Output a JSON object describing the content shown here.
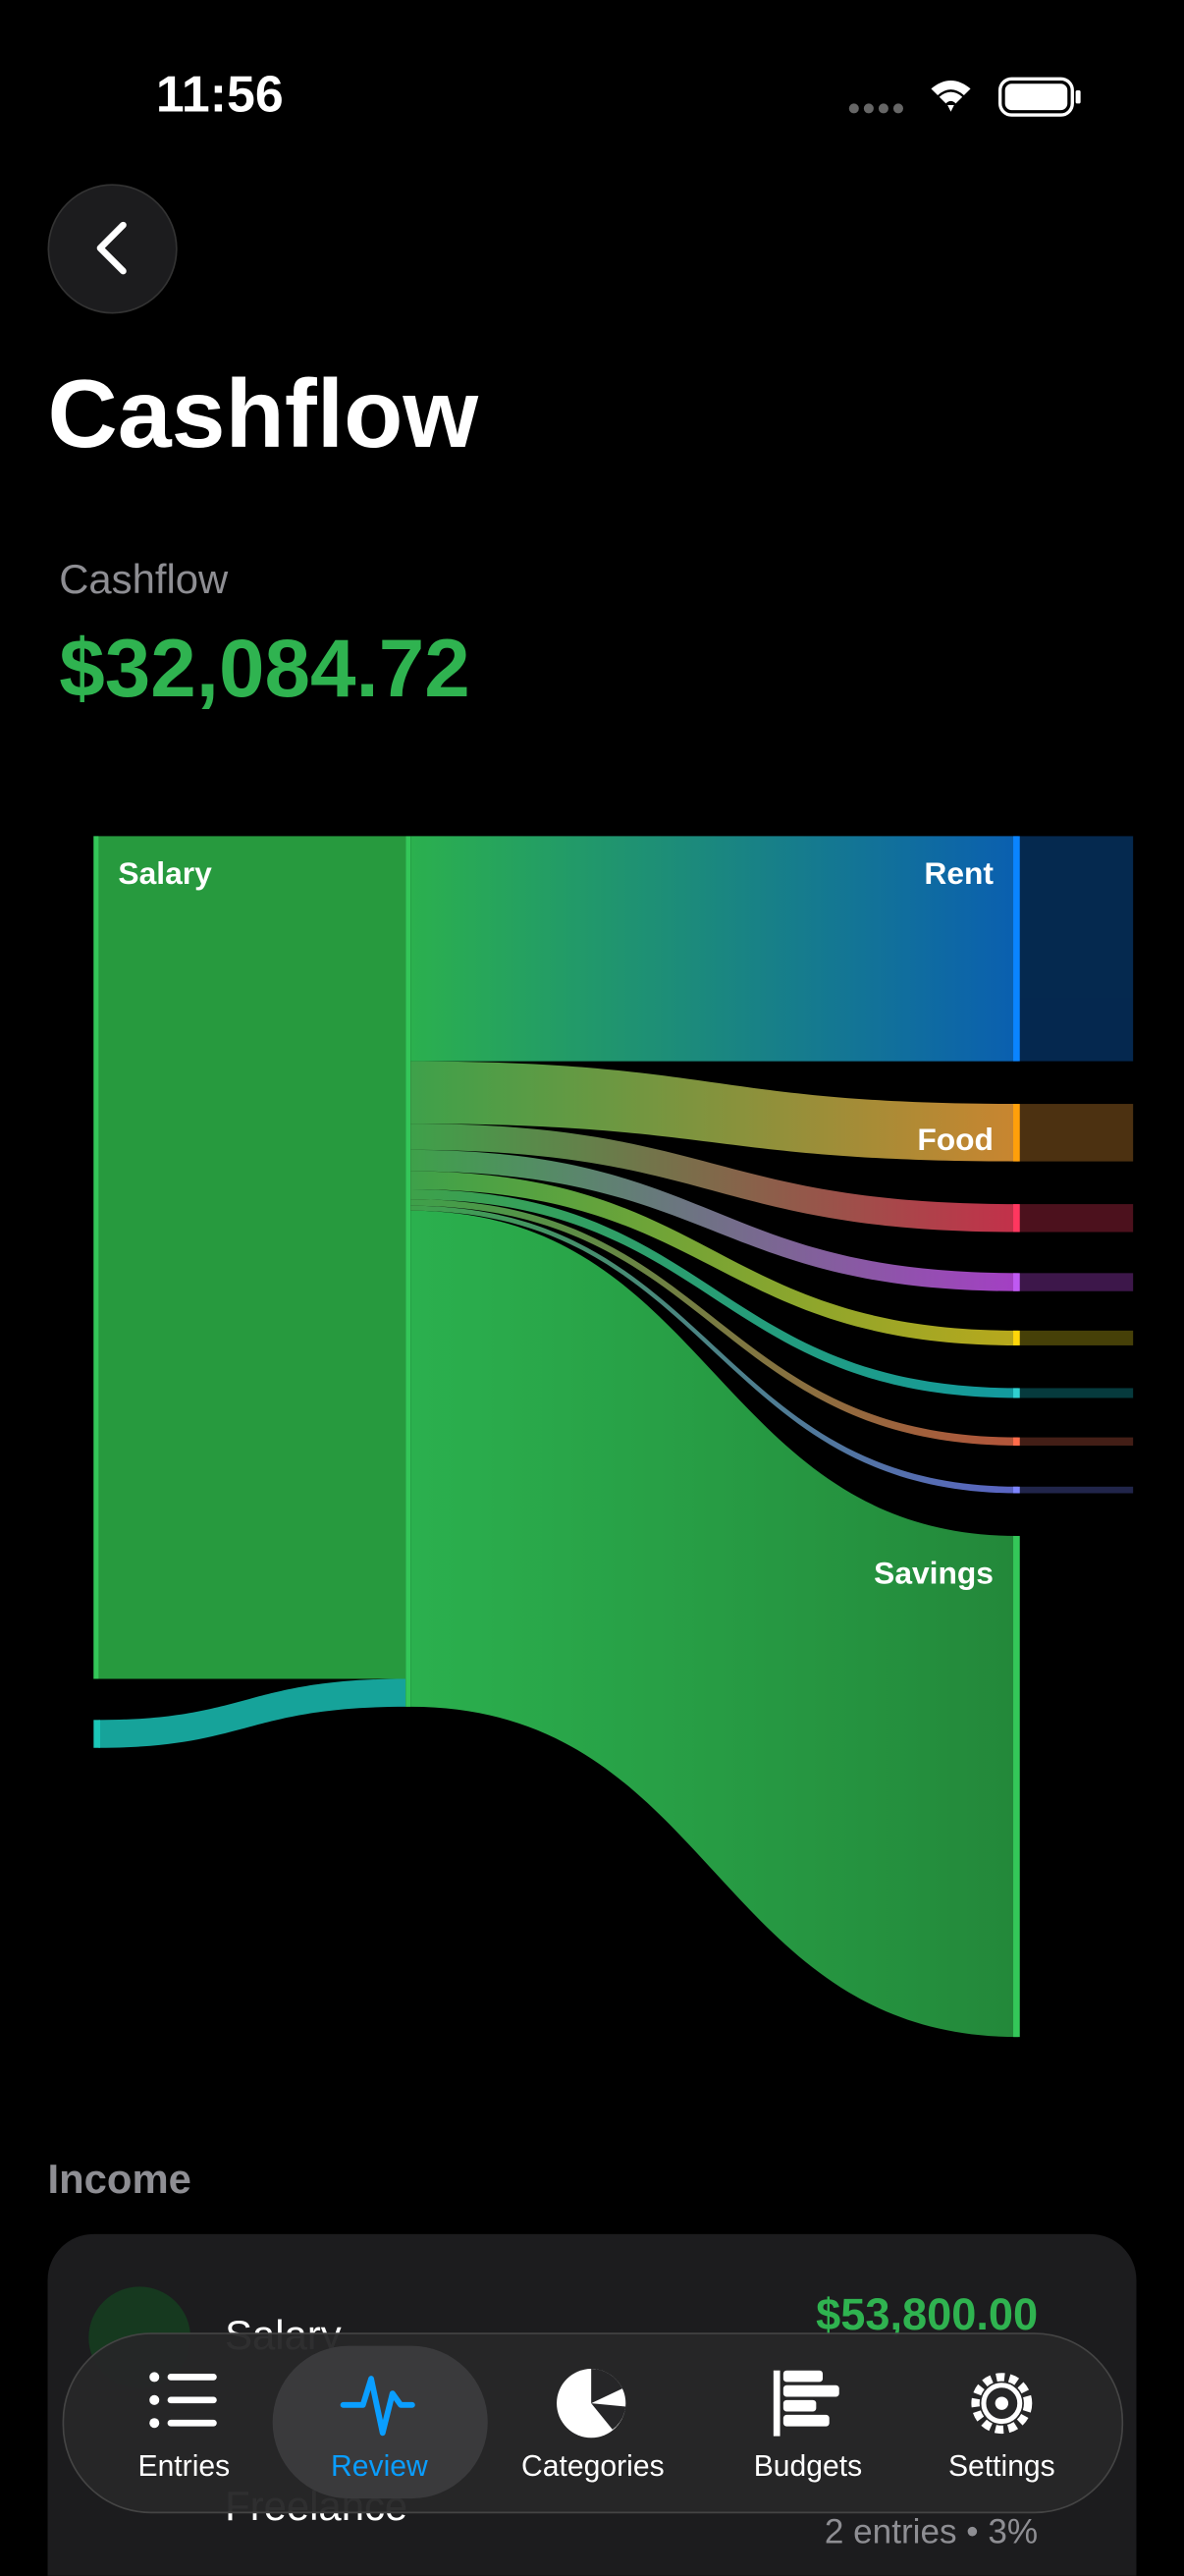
{
  "status_bar": {
    "time": "11:56"
  },
  "header": {
    "title": "Cashflow"
  },
  "summary": {
    "label": "Cashflow",
    "amount": "$32,084.72"
  },
  "sankey": {
    "nodes": [
      "Salary",
      "Rent",
      "Food",
      "Savings"
    ]
  },
  "income": {
    "title": "Income",
    "rows": [
      {
        "name": "Salary",
        "amount": "$53,800.00"
      },
      {
        "name": "Freelance",
        "detail": "2 entries • 3%"
      }
    ]
  },
  "tab_bar": {
    "tabs": [
      "Entries",
      "Review",
      "Categories",
      "Budgets",
      "Settings"
    ]
  }
}
